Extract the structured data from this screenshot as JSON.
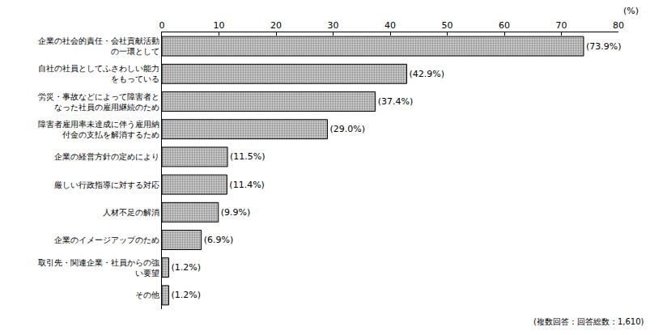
{
  "chart_data": {
    "type": "bar",
    "orientation": "horizontal",
    "categories": [
      "企業の社会的責任・会社貢献活動の一環として",
      "自社の社員としてふさわしい能力をもっている",
      "労災・事故などによって障害者となった社員の雇用継続のため",
      "障害者雇用率未達成に伴う雇用納付金の支払を解消するため",
      "企業の経営方針の定めにより",
      "厳しい行政指導に対する対応",
      "人材不足の解消",
      "企業のイメージアップのため",
      "取引先・関連企業・社員からの強い要望",
      "その他"
    ],
    "values": [
      73.9,
      42.9,
      37.4,
      29.0,
      11.5,
      11.4,
      9.9,
      6.9,
      1.2,
      1.2
    ],
    "value_labels": [
      "(73.9%)",
      "(42.9%)",
      "(37.4%)",
      "(29.0%)",
      "(11.5%)",
      "(11.4%)",
      "(9.9%)",
      "(6.9%)",
      "(1.2%)",
      "(1.2%)"
    ],
    "data_labels": true,
    "color": "#c8c8c8",
    "xlim": [
      0,
      80
    ],
    "xticks": [
      0,
      10,
      20,
      30,
      40,
      50,
      60,
      70,
      80
    ],
    "x_label": "(%)",
    "annotations": [
      "(複数回答：回答総数：1,610)"
    ],
    "grid": false
  }
}
